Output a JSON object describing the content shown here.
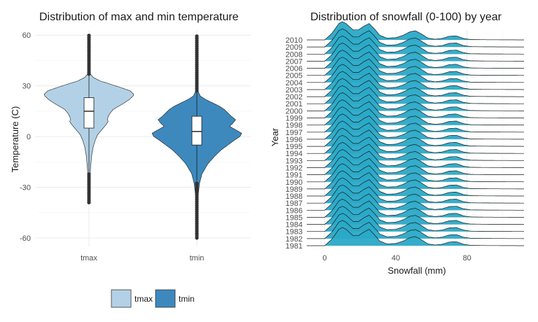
{
  "chart_data": [
    {
      "type": "violin",
      "title": "Distribution of max and min temperature",
      "xlabel": "",
      "ylabel": "Temperature (C)",
      "ylim": [
        -65,
        63
      ],
      "yticks": [
        -60,
        -30,
        0,
        30,
        60
      ],
      "categories": [
        "tmax",
        "tmin"
      ],
      "colors": [
        "#b3d1e6",
        "#3d89be"
      ],
      "grid": true,
      "series": [
        {
          "name": "tmax",
          "min": -39,
          "max": 60,
          "box": {
            "q1": 5,
            "median": 15,
            "q3": 23,
            "whisker_low": -21,
            "whisker_high": 36
          },
          "outliers_low_range": [
            -39,
            -22
          ],
          "outliers_high_range": [
            37,
            60
          ],
          "density": [
            [
              -39,
              0.008
            ],
            [
              -30,
              0.01
            ],
            [
              -20,
              0.02
            ],
            [
              -12,
              0.035
            ],
            [
              -6,
              0.06
            ],
            [
              -2,
              0.09
            ],
            [
              1,
              0.12
            ],
            [
              3,
              0.16
            ],
            [
              5,
              0.2
            ],
            [
              7,
              0.24
            ],
            [
              9,
              0.27
            ],
            [
              10,
              0.26
            ],
            [
              12,
              0.27
            ],
            [
              14,
              0.3
            ],
            [
              16,
              0.34
            ],
            [
              18,
              0.42
            ],
            [
              20,
              0.5
            ],
            [
              22,
              0.57
            ],
            [
              24,
              0.62
            ],
            [
              25,
              0.63
            ],
            [
              27,
              0.58
            ],
            [
              29,
              0.45
            ],
            [
              31,
              0.3
            ],
            [
              33,
              0.15
            ],
            [
              35,
              0.06
            ],
            [
              37,
              0.02
            ],
            [
              45,
              0.008
            ],
            [
              60,
              0.004
            ]
          ]
        },
        {
          "name": "tmin",
          "min": -60,
          "max": 60,
          "box": {
            "q1": -5,
            "median": 3,
            "q3": 12,
            "whisker_low": -26,
            "whisker_high": 26
          },
          "outliers_low_range": [
            -60,
            -27
          ],
          "outliers_high_range": [
            27,
            60
          ],
          "density": [
            [
              -60,
              0.004
            ],
            [
              -45,
              0.008
            ],
            [
              -35,
              0.015
            ],
            [
              -28,
              0.03
            ],
            [
              -22,
              0.06
            ],
            [
              -16,
              0.13
            ],
            [
              -12,
              0.2
            ],
            [
              -8,
              0.28
            ],
            [
              -5,
              0.36
            ],
            [
              -2,
              0.44
            ],
            [
              0,
              0.5
            ],
            [
              2,
              0.52
            ],
            [
              4,
              0.45
            ],
            [
              6,
              0.38
            ],
            [
              8,
              0.42
            ],
            [
              10,
              0.45
            ],
            [
              12,
              0.4
            ],
            [
              14,
              0.36
            ],
            [
              16,
              0.32
            ],
            [
              18,
              0.26
            ],
            [
              20,
              0.18
            ],
            [
              22,
              0.1
            ],
            [
              24,
              0.04
            ],
            [
              27,
              0.012
            ],
            [
              40,
              0.005
            ],
            [
              60,
              0.003
            ]
          ]
        }
      ],
      "legend": {
        "position": "bottom",
        "entries": [
          "tmax",
          "tmin"
        ]
      }
    },
    {
      "type": "ridgeline",
      "title": "Distribution of snowfall (0-100) by year",
      "xlabel": "Snowfall (mm)",
      "ylabel": "Year",
      "xlim": [
        -10,
        112
      ],
      "xticks": [
        0,
        40,
        80
      ],
      "categories": [
        "1981",
        "1982",
        "1983",
        "1984",
        "1985",
        "1986",
        "1987",
        "1988",
        "1989",
        "1990",
        "1991",
        "1992",
        "1993",
        "1994",
        "1995",
        "1996",
        "1997",
        "1998",
        "1999",
        "2000",
        "2001",
        "2002",
        "2003",
        "2004",
        "2005",
        "2006",
        "2007",
        "2008",
        "2009",
        "2010"
      ],
      "fill_color": "#2aa9c7",
      "grid": true,
      "density_profile": [
        [
          0,
          0
        ],
        [
          4,
          0.35
        ],
        [
          8,
          0.9
        ],
        [
          10,
          1.0
        ],
        [
          12,
          0.9
        ],
        [
          16,
          0.55
        ],
        [
          19,
          0.55
        ],
        [
          22,
          0.75
        ],
        [
          25,
          0.9
        ],
        [
          28,
          0.6
        ],
        [
          31,
          0.25
        ],
        [
          35,
          0.1
        ],
        [
          40,
          0.12
        ],
        [
          44,
          0.25
        ],
        [
          48,
          0.45
        ],
        [
          51,
          0.5
        ],
        [
          54,
          0.35
        ],
        [
          58,
          0.1
        ],
        [
          62,
          0.04
        ],
        [
          66,
          0.08
        ],
        [
          70,
          0.2
        ],
        [
          74,
          0.22
        ],
        [
          78,
          0.08
        ],
        [
          82,
          0.02
        ],
        [
          90,
          0.01
        ],
        [
          100,
          0.005
        ],
        [
          112,
          0
        ]
      ],
      "density_start": [
        -10,
        0
      ]
    }
  ]
}
